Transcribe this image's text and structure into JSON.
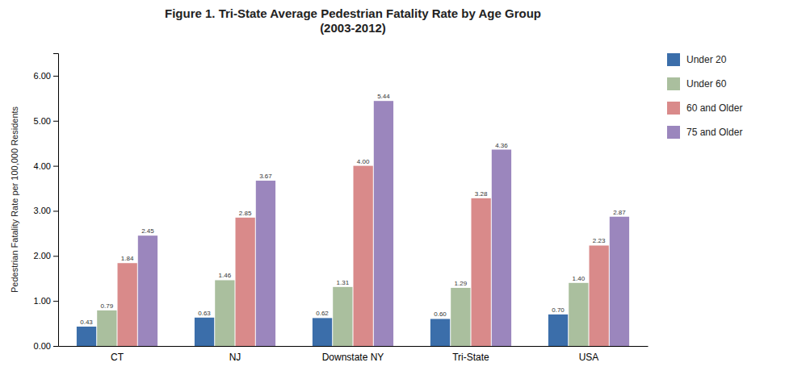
{
  "chart_data": {
    "type": "bar",
    "title": "Figure 1. Tri-State Average Pedestrian Fatality Rate by Age Group\n(2003-2012)",
    "ylabel": "Pedestrian Fatality Rate per 100,000 Residents",
    "categories": [
      "CT",
      "NJ",
      "Downstate NY",
      "Tri-State",
      "USA"
    ],
    "series": [
      {
        "name": "Under 20",
        "color": "#3B6EAA",
        "values": [
          0.43,
          0.63,
          0.62,
          0.6,
          0.7
        ],
        "value_labels": [
          "0.43",
          "0.63",
          "0.62",
          "0.60",
          "0.70"
        ]
      },
      {
        "name": "Under 60",
        "color": "#AABF9E",
        "values": [
          0.79,
          1.46,
          1.31,
          1.29,
          1.4
        ],
        "value_labels": [
          "0.79",
          "1.46",
          "1.31",
          "1.29",
          "1.40"
        ]
      },
      {
        "name": "60 and Older",
        "color": "#D98A8A",
        "values": [
          1.84,
          2.85,
          4.0,
          3.28,
          2.23
        ],
        "value_labels": [
          "1.84",
          "2.85",
          "4.00",
          "3.28",
          "2.23"
        ]
      },
      {
        "name": "75 and Older",
        "color": "#9B86BD",
        "values": [
          2.45,
          3.67,
          5.44,
          4.36,
          2.87
        ],
        "value_labels": [
          "2.45",
          "3.67",
          "5.44",
          "4.36",
          "2.87"
        ]
      }
    ],
    "ylim": [
      0,
      6.5
    ],
    "yticks": [
      {
        "value": 0,
        "label": "0.00"
      },
      {
        "value": 1,
        "label": "1.00"
      },
      {
        "value": 2,
        "label": "2.00"
      },
      {
        "value": 3,
        "label": "3.00"
      },
      {
        "value": 4,
        "label": "4.00"
      },
      {
        "value": 5,
        "label": "5.00"
      },
      {
        "value": 6,
        "label": "6.00"
      }
    ],
    "data_labels": true,
    "grid": false,
    "legend": "right"
  }
}
